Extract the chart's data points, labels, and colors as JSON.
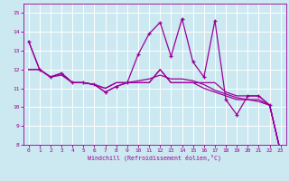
{
  "xlabel": "Windchill (Refroidissement éolien,°C)",
  "x_values": [
    0,
    1,
    2,
    3,
    4,
    5,
    6,
    7,
    8,
    9,
    10,
    11,
    12,
    13,
    14,
    15,
    16,
    17,
    18,
    19,
    20,
    21,
    22,
    23
  ],
  "line1": [
    13.5,
    12.0,
    11.6,
    11.8,
    11.3,
    11.3,
    11.2,
    10.8,
    11.1,
    11.3,
    12.8,
    13.9,
    14.5,
    12.7,
    14.7,
    12.4,
    11.6,
    14.6,
    10.4,
    9.6,
    10.6,
    10.6,
    10.1,
    7.6
  ],
  "line2": [
    12.0,
    12.0,
    11.6,
    11.8,
    11.3,
    11.3,
    11.2,
    11.0,
    11.3,
    11.3,
    11.3,
    11.3,
    12.0,
    11.3,
    11.3,
    11.3,
    11.3,
    11.3,
    10.8,
    10.6,
    10.6,
    10.6,
    10.1,
    7.6
  ],
  "line3": [
    12.0,
    12.0,
    11.6,
    11.8,
    11.3,
    11.3,
    11.2,
    11.0,
    11.3,
    11.3,
    11.3,
    11.3,
    12.0,
    11.3,
    11.3,
    11.3,
    11.0,
    10.8,
    10.6,
    10.4,
    10.4,
    10.4,
    10.1,
    7.6
  ],
  "line4": [
    13.5,
    12.0,
    11.6,
    11.7,
    11.3,
    11.3,
    11.2,
    10.8,
    11.1,
    11.3,
    11.4,
    11.5,
    11.7,
    11.5,
    11.5,
    11.4,
    11.2,
    10.9,
    10.7,
    10.5,
    10.4,
    10.3,
    10.1,
    7.6
  ],
  "line_color": "#990099",
  "bg_color": "#cce8f0",
  "grid_color": "#ffffff",
  "ylim": [
    8,
    15.5
  ],
  "yticks": [
    8,
    9,
    10,
    11,
    12,
    13,
    14,
    15
  ],
  "xticks": [
    0,
    1,
    2,
    3,
    4,
    5,
    6,
    7,
    8,
    9,
    10,
    11,
    12,
    13,
    14,
    15,
    16,
    17,
    18,
    19,
    20,
    21,
    22,
    23
  ]
}
